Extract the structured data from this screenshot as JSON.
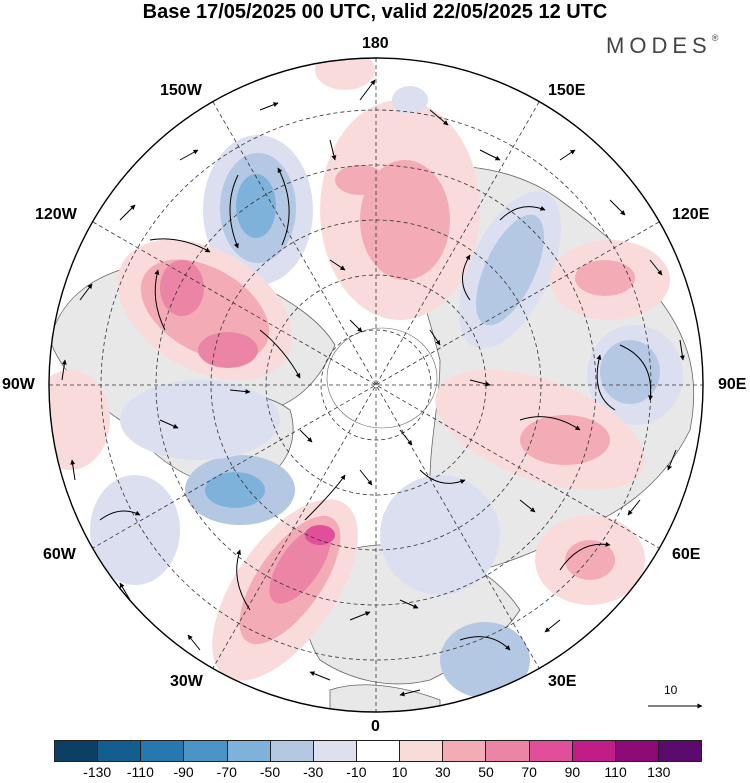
{
  "title": "Base 17/05/2025 00 UTC, valid 22/05/2025 12 UTC",
  "brand": "MODES",
  "brand_mark": "®",
  "longitude_labels": {
    "top": "180",
    "top_left": "150W",
    "top_right": "150E",
    "upper_left": "120W",
    "upper_right": "120E",
    "left": "90W",
    "right": "90E",
    "lower_left": "60W",
    "lower_right": "60E",
    "bottom_left": "30W",
    "bottom_right": "30E",
    "bottom": "0"
  },
  "vector_scale_label": "10",
  "colorbar": {
    "colors": [
      "#0b3f63",
      "#145d8f",
      "#2878b0",
      "#4a94c6",
      "#7fb2da",
      "#b4c8e4",
      "#dfe0ef",
      "#ffffff",
      "#fadbdc",
      "#f3abb6",
      "#ec85a5",
      "#e14f9b",
      "#c11d86",
      "#8e0a78",
      "#5b0a6e"
    ],
    "tick_labels": [
      "-130",
      "-110",
      "-90",
      "-70",
      "-50",
      "-30",
      "-10",
      "10",
      "30",
      "50",
      "70",
      "90",
      "110",
      "130"
    ]
  },
  "anomaly_colors": {
    "land": "#e8e8e8",
    "neg_weak": "#dcdff0",
    "neg_mid": "#b4c8e4",
    "neg_strong": "#7fb2da",
    "pos_weak": "#fadbdc",
    "pos_mid": "#f3abb6",
    "pos_strong": "#ec85a5",
    "pos_peak": "#e14f9b"
  }
}
